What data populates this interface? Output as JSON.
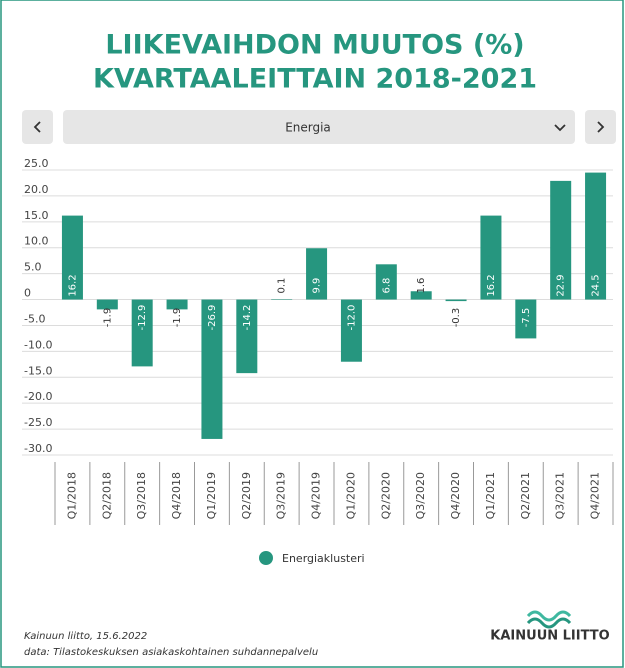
{
  "chart_data": {
    "type": "bar",
    "title": [
      "LIIKEVAIHDON MUUTOS (%)",
      "KVARTAALEITTAIN 2018-2021"
    ],
    "categories": [
      "Q1/2018",
      "Q2/2018",
      "Q3/2018",
      "Q4/2018",
      "Q1/2019",
      "Q2/2019",
      "Q3/2019",
      "Q4/2019",
      "Q1/2020",
      "Q2/2020",
      "Q3/2020",
      "Q4/2020",
      "Q1/2021",
      "Q2/2021",
      "Q3/2021",
      "Q4/2021"
    ],
    "series": [
      {
        "name": "Energiaklusteri",
        "color": "#26967f",
        "values": [
          16.2,
          -1.9,
          -12.9,
          -1.9,
          -26.9,
          -14.2,
          0.1,
          9.9,
          -12,
          6.8,
          1.6,
          -0.3,
          16.2,
          -7.5,
          22.9,
          24.5
        ],
        "value_labels": [
          "16.2",
          "-1.9",
          "-12.9",
          "-1.9",
          "-26.9",
          "-14.2",
          "0.1",
          "9.9",
          "-12.0",
          "6.8",
          "1.6",
          "-0.3",
          "16.2",
          "-7.5",
          "22.9",
          "24.5"
        ]
      }
    ],
    "ylim": [
      -30,
      25
    ],
    "yticks": [
      {
        "value": 25,
        "label": "25.0"
      },
      {
        "value": 20,
        "label": "20.0"
      },
      {
        "value": 15,
        "label": "15.0"
      },
      {
        "value": 10,
        "label": "10.0"
      },
      {
        "value": 5,
        "label": "5.0"
      },
      0,
      {
        "value": -5,
        "label": "-5.0"
      },
      {
        "value": -10,
        "label": "-10.0"
      },
      {
        "value": -15,
        "label": "-15.0"
      },
      {
        "value": -20,
        "label": "-20.0"
      },
      {
        "value": -25,
        "label": "-25.0"
      },
      {
        "value": -30,
        "label": "-30.0"
      }
    ],
    "grid": true
  },
  "controls": {
    "selected": "Energia"
  },
  "footer": {
    "source": "Kainuun liitto, 15.6.2022",
    "data": "data: Tilastokeskuksen asiakaskohtainen suhdannepalvelu"
  },
  "logo": {
    "text": "KAINUUN LIITTO"
  }
}
